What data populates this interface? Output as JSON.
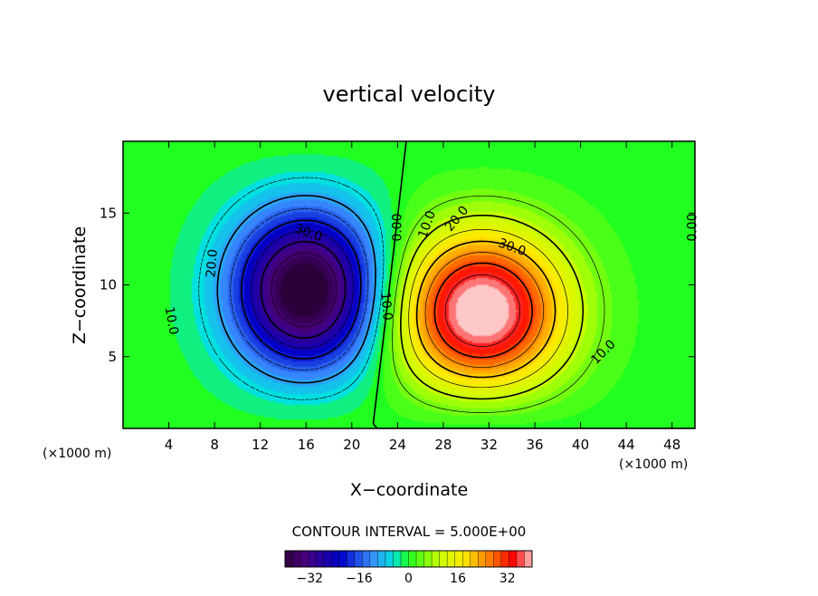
{
  "chart_data": {
    "type": "contour",
    "title": "vertical velocity",
    "xlabel": "X−coordinate",
    "ylabel": "Z−coordinate",
    "x_unit_left": "(×1000 m)",
    "x_unit_right": "(×1000 m)",
    "xlim": [
      0,
      50
    ],
    "ylim": [
      0,
      20
    ],
    "x_ticks": [
      4,
      8,
      12,
      16,
      20,
      24,
      28,
      32,
      36,
      40,
      44,
      48
    ],
    "y_ticks": [
      5,
      10,
      15
    ],
    "contour_interval_text": "CONTOUR INTERVAL = 5.000E+00",
    "contour_interval": 5.0,
    "colorbar": {
      "min": -40,
      "max": 40,
      "ticks": [
        -32,
        -16,
        0,
        16,
        32
      ],
      "tick_labels": [
        "−32",
        "−16",
        "0",
        "16",
        "32"
      ]
    },
    "cells": [
      {
        "name": "downdraft",
        "center_x": 15.8,
        "center_z": 9.5,
        "peak": -40
      },
      {
        "name": "updraft",
        "center_x": 31.5,
        "center_z": 7.5,
        "peak": 40
      }
    ],
    "contour_labels": [
      {
        "text": "30.0",
        "x": 16.2,
        "z": 13.6,
        "angle": 20
      },
      {
        "text": "20.0",
        "x": 7.8,
        "z": 11.5,
        "angle": -85
      },
      {
        "text": "10.0",
        "x": 4.2,
        "z": 7.5,
        "angle": 80
      },
      {
        "text": "10.0",
        "x": 23.0,
        "z": 8.5,
        "angle": 85
      },
      {
        "text": "0.00",
        "x": 24.0,
        "z": 14.0,
        "angle": -90
      },
      {
        "text": "10.0",
        "x": 26.6,
        "z": 14.2,
        "angle": -70
      },
      {
        "text": "20.0",
        "x": 29.2,
        "z": 14.6,
        "angle": -50
      },
      {
        "text": "30.0",
        "x": 34.0,
        "z": 12.6,
        "angle": 20
      },
      {
        "text": "10.0",
        "x": 42.0,
        "z": 5.3,
        "angle": -45
      },
      {
        "text": "0.00",
        "x": 49.8,
        "z": 14.0,
        "angle": -90
      }
    ]
  }
}
